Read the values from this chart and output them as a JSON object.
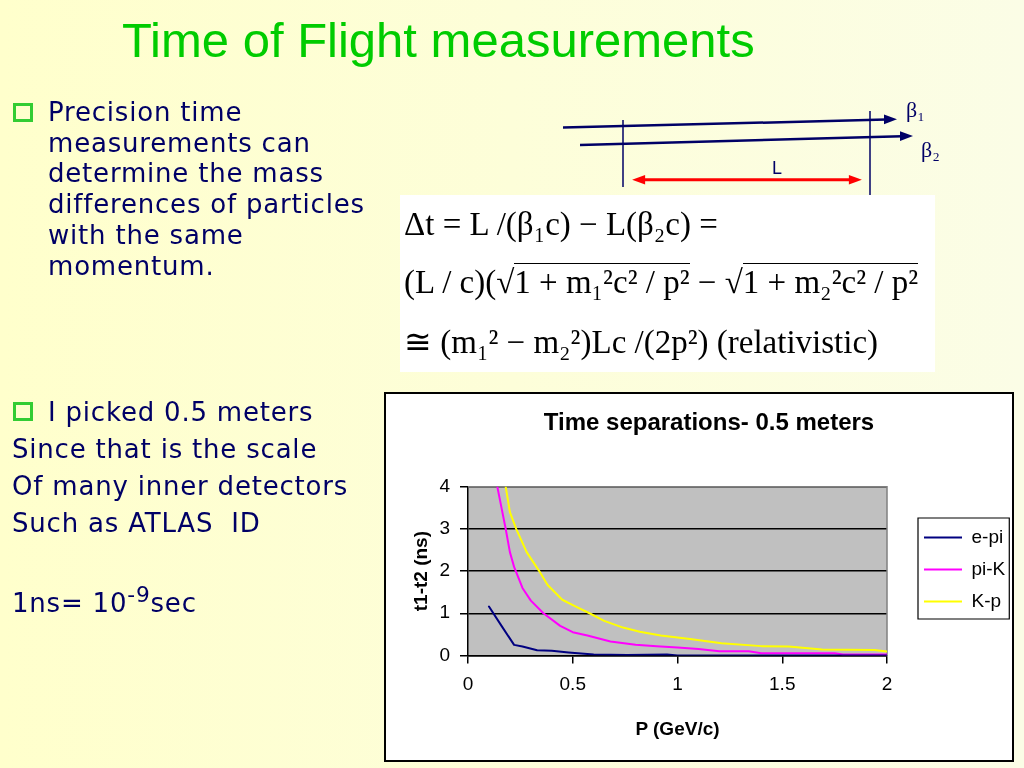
{
  "chart_data": {
    "type": "line",
    "title": "Time of Flight measurements",
    "subtitle": "Time separations- 0.5 meters",
    "xlabel": "P (GeV/c)",
    "ylabel": "t1-t2 (ns)",
    "series": [
      {
        "name": "e-pi",
        "color": "#000080",
        "x": [
          0.1,
          0.16,
          0.22,
          0.26,
          0.33,
          0.4,
          0.48,
          0.6,
          0.76,
          0.95,
          1,
          2
        ],
        "values": [
          1.16,
          0.7,
          0.25,
          0.21,
          0.12,
          0.11,
          0.07,
          0.02,
          0.01,
          0.02,
          0,
          0
        ]
      },
      {
        "name": "pi-K",
        "color": "#ff00ff",
        "x": [
          0.14,
          0.16,
          0.18,
          0.2,
          0.22,
          0.26,
          0.3,
          0.36,
          0.44,
          0.5,
          0.57,
          0.68,
          0.8,
          0.9,
          1,
          1.1,
          1.2,
          1.34,
          1.4,
          1.75,
          1.79,
          2
        ],
        "values": [
          4,
          3.5,
          3,
          2.45,
          2.1,
          1.6,
          1.3,
          1,
          0.7,
          0.55,
          0.47,
          0.33,
          0.25,
          0.22,
          0.19,
          0.15,
          0.1,
          0.1,
          0.05,
          0.05,
          0.02,
          0.02
        ]
      },
      {
        "name": "K-p",
        "color": "#ffff00",
        "x": [
          0.18,
          0.2,
          0.23,
          0.28,
          0.34,
          0.38,
          0.45,
          0.51,
          0.58,
          0.65,
          0.74,
          0.82,
          0.92,
          1.06,
          1.21,
          1.4,
          1.53,
          1.69,
          1.94,
          2
        ],
        "values": [
          4,
          3.4,
          3,
          2.45,
          2,
          1.67,
          1.32,
          1.17,
          1,
          0.82,
          0.66,
          0.56,
          0.47,
          0.39,
          0.29,
          0.22,
          0.21,
          0.14,
          0.13,
          0.09
        ]
      }
    ],
    "xlim": [
      0,
      2
    ],
    "xticks": [
      0,
      0.5,
      1,
      1.5,
      2
    ],
    "ylim": [
      0,
      4
    ],
    "yticks": [
      0,
      1,
      2,
      3,
      4
    ],
    "grid": "y",
    "legend": "right",
    "annotations": [
      "Precision time\nmeasurements can\ndetermine the mass\ndifferences of particles\nwith the same\nmomentum.",
      "I picked 0.5 meters\nSince that is the scale\nOf many inner detectors\nSuch as ATLAS  ID",
      "1ns= 10$^{-9}$sec",
      "Δt = L /(β₁c) − L(β₂c) =",
      "(L / c)(√1 + m₁²c² / p² − √1 + m₂²c² / p²",
      "≅ (m₁² − m₂²)Lc /(2p²) (relativistic)",
      "β₁",
      "β₂",
      "L"
    ]
  }
}
